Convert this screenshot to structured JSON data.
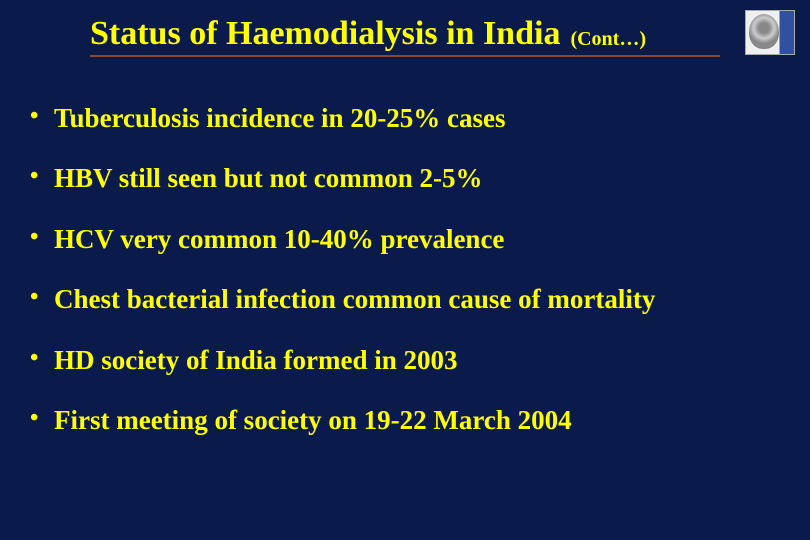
{
  "slide": {
    "background_color": "#0a1a4a",
    "text_color": "#ffff00",
    "underline_color": "#8a4a2a",
    "font_family": "Comic Sans MS",
    "title": "Status of Haemodialysis in India",
    "title_fontsize": 34,
    "cont_label": "(Cont…)",
    "cont_fontsize": 20,
    "bullet_fontsize": 27,
    "bullets": [
      "Tuberculosis incidence in 20-25% cases",
      "HBV still seen but not common 2-5%",
      "HCV very common 10-40% prevalence",
      "Chest bacterial infection common cause of mortality",
      "HD society of India formed in 2003",
      "First meeting of society on 19-22 March 2004"
    ]
  }
}
